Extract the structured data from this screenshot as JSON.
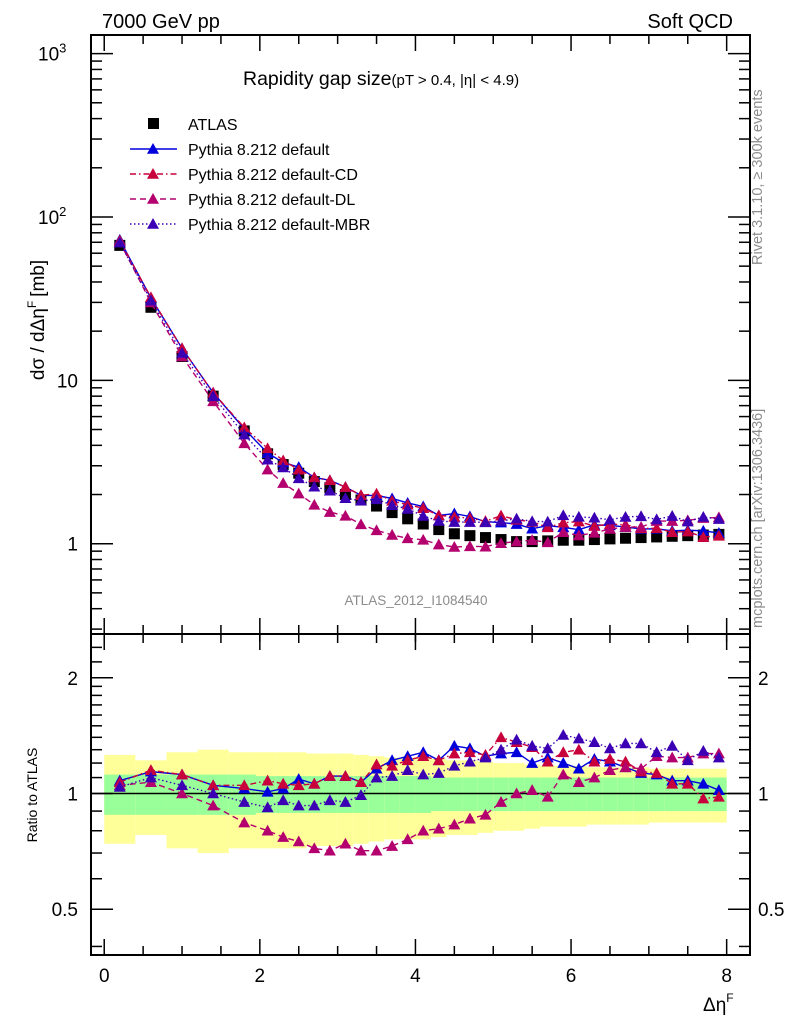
{
  "header": {
    "left_label": "7000 GeV pp",
    "right_label": "Soft QCD"
  },
  "side_labels": {
    "rivet": "Rivet 3.1.10, ≥ 300k events",
    "mcplots": "mcplots.cern.ch [arXiv:1306.3436]"
  },
  "chart_data": [
    {
      "type": "line",
      "panel": "main",
      "title": "Rapidity gap size",
      "title_suffix": "(pT > 0.4, |η| < 4.9)",
      "analysis_id": "ATLAS_2012_I1084540",
      "xlabel": "Δη",
      "xlabel_sup": "F",
      "ylabel": "dσ / dΔη",
      "ylabel_sup": "F",
      "ylabel_unit": "[mb]",
      "yscale": "log",
      "xlim": [
        -0.17,
        8.3
      ],
      "ylim": [
        0.28,
        1300
      ],
      "xticks": [
        0,
        2,
        4,
        6,
        8
      ],
      "xtick_labels": [
        "0",
        "2",
        "4",
        "6",
        "8"
      ],
      "yticks": [
        1,
        10,
        100,
        1000
      ],
      "ytick_labels": [
        "1",
        "10",
        "10",
        "10"
      ],
      "ytick_sups": [
        "",
        "",
        "2",
        "3"
      ],
      "legend_position": "top-left",
      "x": [
        0.2,
        0.6,
        1.0,
        1.4,
        1.8,
        2.1,
        2.3,
        2.5,
        2.7,
        2.9,
        3.1,
        3.3,
        3.5,
        3.7,
        3.9,
        4.1,
        4.3,
        4.5,
        4.7,
        4.9,
        5.1,
        5.3,
        5.5,
        5.7,
        5.9,
        6.1,
        6.3,
        6.5,
        6.7,
        6.9,
        7.1,
        7.3,
        7.5,
        7.7,
        7.9
      ],
      "series": [
        {
          "name": "ATLAS",
          "style": "data",
          "color": "#000000",
          "marker": "square",
          "values": [
            67,
            28,
            14,
            8.0,
            4.9,
            3.55,
            3.05,
            2.7,
            2.4,
            2.2,
            2.0,
            1.85,
            1.7,
            1.55,
            1.42,
            1.32,
            1.22,
            1.15,
            1.12,
            1.09,
            1.06,
            1.03,
            1.03,
            1.04,
            1.05,
            1.05,
            1.06,
            1.07,
            1.08,
            1.09,
            1.1,
            1.11,
            1.12,
            1.13,
            1.14
          ]
        },
        {
          "name": "Pythia 8.212 default",
          "style": "solid",
          "color": "#0000dd",
          "marker": "triangle",
          "ratio": [
            1.08,
            1.14,
            1.12,
            1.05,
            1.03,
            1.01,
            1.03,
            1.09,
            1.06,
            1.11,
            1.11,
            1.07,
            1.16,
            1.22,
            1.25,
            1.28,
            1.22,
            1.33,
            1.31,
            1.25,
            1.27,
            1.28,
            1.2,
            1.24,
            1.2,
            1.16,
            1.23,
            1.21,
            1.17,
            1.13,
            1.12,
            1.08,
            1.08,
            1.06,
            1.02
          ]
        },
        {
          "name": "Pythia 8.212 default-CD",
          "style": "dashdot",
          "color": "#c8003c",
          "marker": "triangle",
          "ratio": [
            1.07,
            1.15,
            1.12,
            1.05,
            1.05,
            1.08,
            1.06,
            1.05,
            1.06,
            1.11,
            1.11,
            1.07,
            1.19,
            1.18,
            1.22,
            1.25,
            1.22,
            1.27,
            1.28,
            1.26,
            1.4,
            1.36,
            1.32,
            1.21,
            1.28,
            1.3,
            1.21,
            1.23,
            1.21,
            1.14,
            1.13,
            1.06,
            1.06,
            0.97,
            0.98
          ]
        },
        {
          "name": "Pythia 8.212 default-DL",
          "style": "dashed",
          "color": "#b4006e",
          "marker": "triangle",
          "ratio": [
            1.05,
            1.07,
            1.0,
            0.93,
            0.84,
            0.8,
            0.77,
            0.75,
            0.72,
            0.71,
            0.74,
            0.71,
            0.71,
            0.73,
            0.76,
            0.8,
            0.81,
            0.83,
            0.86,
            0.88,
            0.95,
            1.0,
            1.02,
            0.98,
            1.12,
            1.07,
            1.1,
            1.15,
            1.17,
            1.16,
            1.25,
            1.24,
            1.24,
            1.27,
            1.27
          ]
        },
        {
          "name": "Pythia 8.212 default-MBR",
          "style": "dotted",
          "color": "#3c00b4",
          "marker": "triangle",
          "ratio": [
            1.04,
            1.1,
            1.05,
            1.0,
            0.95,
            0.92,
            0.96,
            0.93,
            0.93,
            0.96,
            0.95,
            0.99,
            1.1,
            1.11,
            1.15,
            1.12,
            1.13,
            1.18,
            1.21,
            1.24,
            1.3,
            1.38,
            1.33,
            1.31,
            1.42,
            1.39,
            1.36,
            1.31,
            1.35,
            1.35,
            1.28,
            1.33,
            1.22,
            1.29,
            1.24
          ]
        }
      ]
    },
    {
      "type": "line",
      "panel": "ratio",
      "ylabel": "Ratio to ATLAS",
      "yscale": "log",
      "ylim": [
        0.38,
        2.6
      ],
      "yticks": [
        0.5,
        1,
        2
      ],
      "ytick_labels": [
        "0.5",
        "1",
        "2"
      ],
      "bands": {
        "inner_color": "#99ff99",
        "outer_color": "#ffff99",
        "inner_halfwidth": [
          0.12,
          0.12,
          0.12,
          0.12,
          0.12,
          0.11,
          0.11,
          0.11,
          0.11,
          0.11,
          0.11,
          0.11,
          0.11,
          0.11,
          0.11,
          0.11,
          0.1,
          0.1,
          0.1,
          0.1,
          0.1,
          0.1,
          0.1,
          0.1,
          0.1,
          0.1,
          0.1,
          0.1,
          0.1,
          0.1,
          0.1,
          0.1,
          0.1,
          0.1,
          0.1
        ],
        "outer_halfwidth": [
          0.26,
          0.22,
          0.28,
          0.3,
          0.28,
          0.28,
          0.28,
          0.28,
          0.27,
          0.27,
          0.27,
          0.26,
          0.25,
          0.24,
          0.24,
          0.24,
          0.23,
          0.22,
          0.22,
          0.21,
          0.2,
          0.2,
          0.19,
          0.18,
          0.18,
          0.18,
          0.17,
          0.17,
          0.17,
          0.17,
          0.16,
          0.16,
          0.16,
          0.16,
          0.16
        ]
      }
    }
  ]
}
